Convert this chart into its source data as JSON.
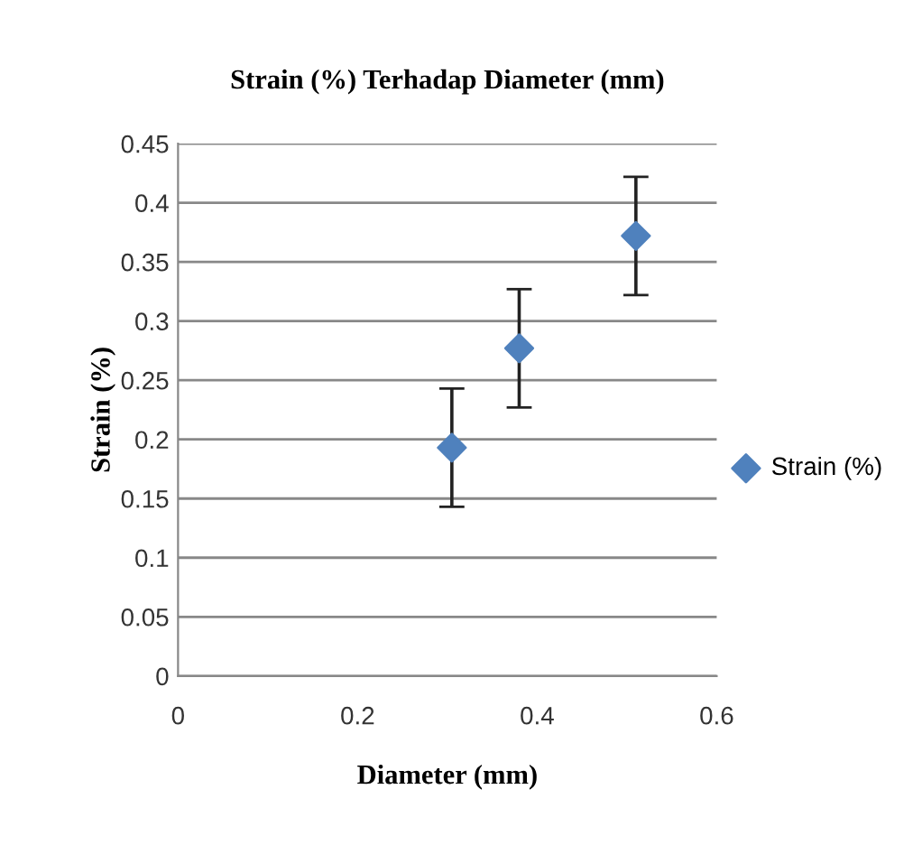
{
  "chart_data": {
    "type": "scatter",
    "title": "Strain (%) Terhadap Diameter (mm)",
    "xlabel": "Diameter (mm)",
    "ylabel": "Strain (%)",
    "x": [
      0.305,
      0.38,
      0.51
    ],
    "series": [
      {
        "name": "Strain (%)",
        "color": "#4f81bd",
        "values": [
          0.193,
          0.277,
          0.372
        ],
        "errors": [
          0.05,
          0.05,
          0.05
        ]
      }
    ],
    "xlim": [
      0,
      0.6
    ],
    "xticks": [
      0,
      0.2,
      0.4,
      0.6
    ],
    "ylim": [
      0,
      0.45
    ],
    "yticks": [
      0,
      0.05,
      0.1,
      0.15,
      0.2,
      0.25,
      0.3,
      0.35,
      0.4,
      0.45
    ],
    "grid": "y",
    "legend": "right",
    "marker": "diamond"
  }
}
